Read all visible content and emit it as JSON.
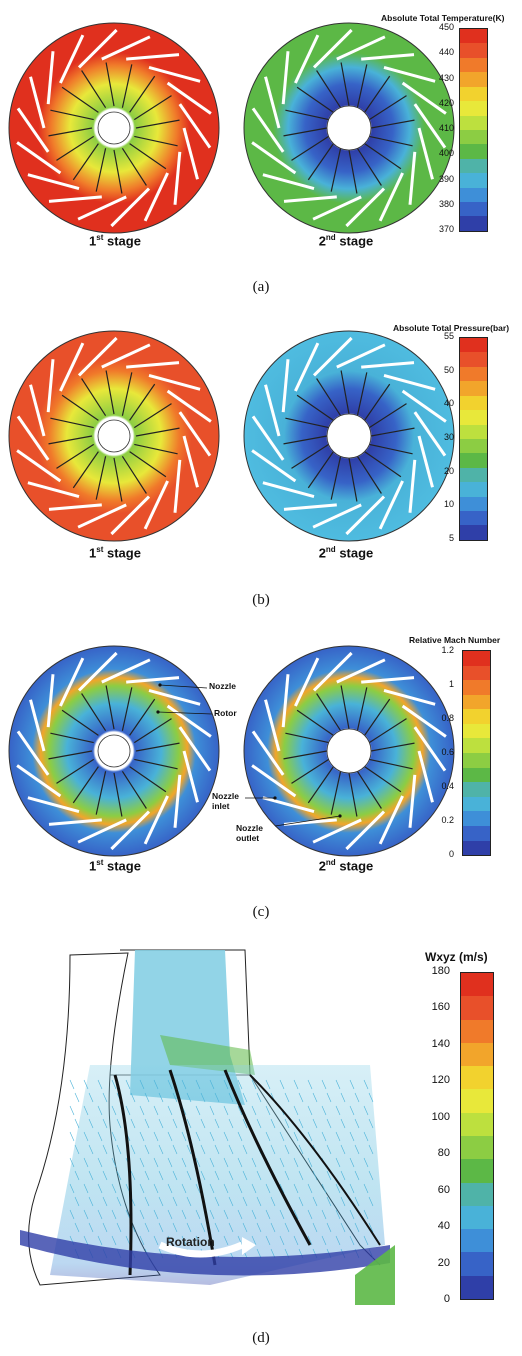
{
  "panels": [
    {
      "label": "(a)",
      "colorbar": {
        "title": "Absolute Total Temperature(K)",
        "ticks": [
          "450",
          "440",
          "430",
          "420",
          "410",
          "400",
          "390",
          "380",
          "370"
        ],
        "colors": [
          "#e0301e",
          "#e8502a",
          "#f07a2a",
          "#f2a52b",
          "#f2d22e",
          "#e8e83a",
          "#bde03e",
          "#8ccd43",
          "#5cb846",
          "#4fb3a8",
          "#49b2d8",
          "#3e8fd8",
          "#3763c7",
          "#2f3fa8"
        ]
      },
      "stages": [
        {
          "num": "1",
          "sup": "st",
          "word": "stage"
        },
        {
          "num": "2",
          "sup": "nd",
          "word": "stage"
        }
      ]
    },
    {
      "label": "(b)",
      "colorbar": {
        "title": "Absolute Total Pressure(bar)",
        "ticks": [
          "55",
          "50",
          "40",
          "30",
          "20",
          "10",
          "5"
        ],
        "colors": [
          "#e0301e",
          "#e8502a",
          "#f07a2a",
          "#f2a52b",
          "#f2d22e",
          "#e8e83a",
          "#bde03e",
          "#8ccd43",
          "#5cb846",
          "#4fb3a8",
          "#49b2d8",
          "#3e8fd8",
          "#3763c7",
          "#2f3fa8"
        ]
      },
      "stages": [
        {
          "num": "1",
          "sup": "st",
          "word": "stage"
        },
        {
          "num": "2",
          "sup": "nd",
          "word": "stage"
        }
      ]
    },
    {
      "label": "(c)",
      "colorbar": {
        "title": "Relative Mach Number",
        "ticks": [
          "1.2",
          "1",
          "0.8",
          "0.6",
          "0.4",
          "0.2",
          "0"
        ],
        "colors": [
          "#e0301e",
          "#e8502a",
          "#f07a2a",
          "#f2a52b",
          "#f2d22e",
          "#e8e83a",
          "#bde03e",
          "#8ccd43",
          "#5cb846",
          "#4fb3a8",
          "#49b2d8",
          "#3e8fd8",
          "#3763c7",
          "#2f3fa8"
        ]
      },
      "annotations": {
        "nozzle": "Nozzle",
        "rotor": "Rotor",
        "nozzle_inlet_1": "Nozzle",
        "nozzle_inlet_2": "inlet",
        "nozzle_outlet_1": "Nozzle",
        "nozzle_outlet_2": "outlet"
      },
      "stages": [
        {
          "num": "1",
          "sup": "st",
          "word": "stage"
        },
        {
          "num": "2",
          "sup": "nd",
          "word": "stage"
        }
      ]
    },
    {
      "label": "(d)",
      "colorbar": {
        "title": "Wxyz (m/s)",
        "ticks": [
          "180",
          "160",
          "140",
          "120",
          "100",
          "80",
          "60",
          "40",
          "20",
          "0"
        ],
        "colors": [
          "#e0301e",
          "#e8502a",
          "#f07a2a",
          "#f2a52b",
          "#f2d22e",
          "#e8e83a",
          "#bde03e",
          "#8ccd43",
          "#5cb846",
          "#4fb3a8",
          "#49b2d8",
          "#3e8fd8",
          "#3763c7",
          "#2f3fa8"
        ]
      },
      "rotation_label": "Rotation"
    }
  ]
}
